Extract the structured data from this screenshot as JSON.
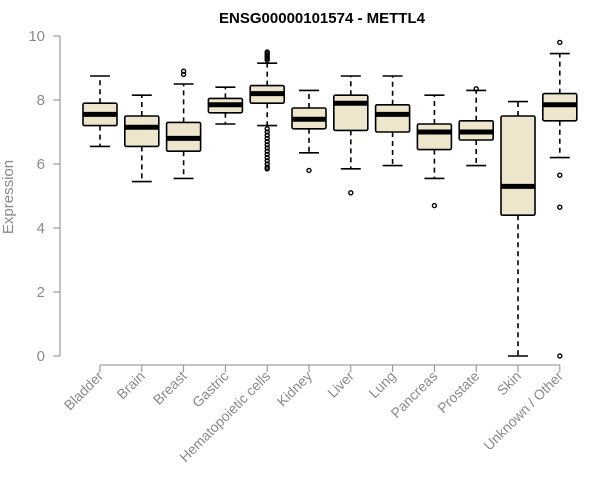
{
  "chart_data": {
    "type": "boxplot",
    "title": "ENSG00000101574 - METTL4",
    "xlabel": "",
    "ylabel": "Expression",
    "ylim": [
      0,
      10
    ],
    "yticks": [
      "0",
      "2",
      "4",
      "6",
      "8",
      "10"
    ],
    "box_color": "#ede6cc",
    "axis_color": "#8a8a8a",
    "categories": [
      "Bladder",
      "Brain",
      "Breast",
      "Gastric",
      "Hematopoietic cells",
      "Kidney",
      "Liver",
      "Lung",
      "Pancreas",
      "Prostate",
      "Skin",
      "Unknown / Other"
    ],
    "boxes": [
      {
        "name": "Bladder",
        "whisker_low": 6.55,
        "q1": 7.2,
        "median": 7.55,
        "q3": 7.9,
        "whisker_high": 8.75,
        "outliers": []
      },
      {
        "name": "Brain",
        "whisker_low": 5.45,
        "q1": 6.55,
        "median": 7.15,
        "q3": 7.5,
        "whisker_high": 8.15,
        "outliers": []
      },
      {
        "name": "Breast",
        "whisker_low": 5.55,
        "q1": 6.4,
        "median": 6.8,
        "q3": 7.3,
        "whisker_high": 8.5,
        "outliers": [
          8.8,
          8.9
        ]
      },
      {
        "name": "Gastric",
        "whisker_low": 7.25,
        "q1": 7.6,
        "median": 7.85,
        "q3": 8.05,
        "whisker_high": 8.4,
        "outliers": []
      },
      {
        "name": "Hematopoietic cells",
        "whisker_low": 7.2,
        "q1": 7.9,
        "median": 8.2,
        "q3": 8.45,
        "whisker_high": 9.15,
        "outliers": [
          9.25,
          9.3,
          9.35,
          9.4,
          9.45,
          9.5,
          7.1,
          7.0,
          6.9,
          6.8,
          6.7,
          6.6,
          6.5,
          6.4,
          6.3,
          6.2,
          6.1,
          6.0,
          5.9,
          5.85
        ]
      },
      {
        "name": "Kidney",
        "whisker_low": 6.35,
        "q1": 7.1,
        "median": 7.4,
        "q3": 7.75,
        "whisker_high": 8.3,
        "outliers": [
          5.8
        ]
      },
      {
        "name": "Liver",
        "whisker_low": 5.85,
        "q1": 7.05,
        "median": 7.9,
        "q3": 8.15,
        "whisker_high": 8.75,
        "outliers": [
          5.1
        ]
      },
      {
        "name": "Lung",
        "whisker_low": 5.95,
        "q1": 7.0,
        "median": 7.55,
        "q3": 7.85,
        "whisker_high": 8.75,
        "outliers": []
      },
      {
        "name": "Pancreas",
        "whisker_low": 5.55,
        "q1": 6.45,
        "median": 7.0,
        "q3": 7.25,
        "whisker_high": 8.15,
        "outliers": [
          4.7
        ]
      },
      {
        "name": "Prostate",
        "whisker_low": 5.95,
        "q1": 6.75,
        "median": 7.0,
        "q3": 7.35,
        "whisker_high": 8.3,
        "outliers": [
          8.35
        ]
      },
      {
        "name": "Skin",
        "whisker_low": 0.0,
        "q1": 4.4,
        "median": 5.3,
        "q3": 7.5,
        "whisker_high": 7.95,
        "outliers": []
      },
      {
        "name": "Unknown / Other",
        "whisker_low": 6.2,
        "q1": 7.35,
        "median": 7.85,
        "q3": 8.2,
        "whisker_high": 9.45,
        "outliers": [
          9.8,
          5.65,
          4.65,
          0.0
        ]
      }
    ]
  }
}
